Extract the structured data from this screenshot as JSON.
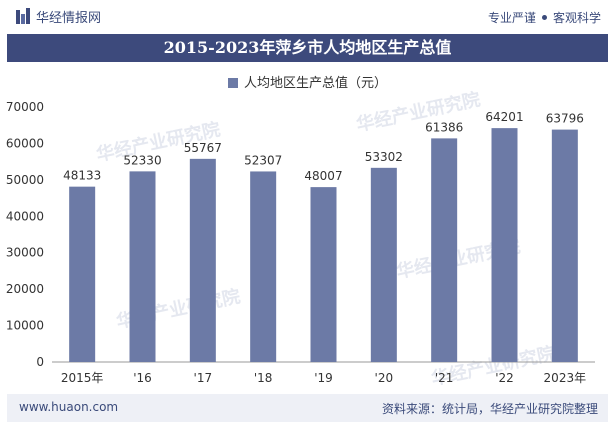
{
  "header": {
    "brand": "华经情报网",
    "tag1": "专业严谨",
    "tag2": "客观科学"
  },
  "watermark": "华经产业研究院",
  "chart_data": {
    "type": "bar",
    "title": "2015-2023年萍乡市人均地区生产总值",
    "legend": [
      "人均地区生产总值（元）"
    ],
    "categories": [
      "2015年",
      "'16",
      "'17",
      "'18",
      "'19",
      "'20",
      "'21",
      "'22",
      "2023年"
    ],
    "series": [
      {
        "name": "人均地区生产总值（元）",
        "values": [
          48133,
          52330,
          55767,
          52307,
          48007,
          53302,
          61386,
          64201,
          63796
        ]
      }
    ],
    "ylim": [
      0,
      70000
    ],
    "yticks": [
      0,
      10000,
      20000,
      30000,
      40000,
      50000,
      60000,
      70000
    ],
    "xlabel": "",
    "ylabel": "",
    "grid": false,
    "legend_position": "top",
    "bar_color": "#6c7aa6"
  },
  "footer": {
    "url": "www.huaon.com",
    "source": "资料来源：统计局，华经产业研究院整理"
  }
}
